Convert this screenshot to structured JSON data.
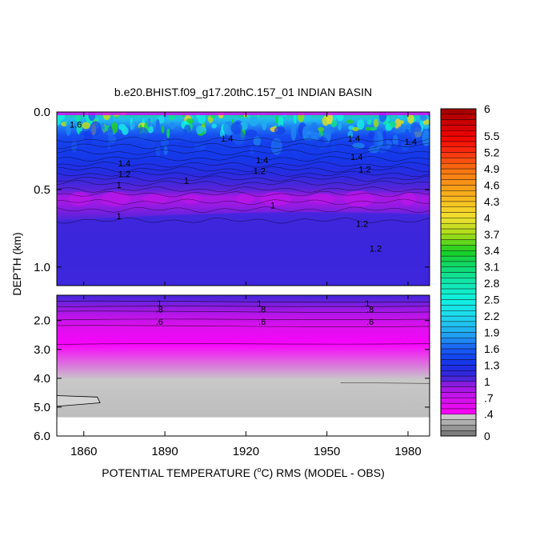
{
  "chart_data": {
    "type": "heatmap",
    "title": "b.e20.BHIST.f09_g17.20thC.157_01 INDIAN BASIN",
    "xlabel": "POTENTIAL TEMPERATURE (",
    "xlabel_deg": "o",
    "xlabel_rest": "C) RMS (MODEL - OBS)",
    "ylabel": "DEPTH (km)",
    "xlim": [
      1850,
      1988
    ],
    "x_ticks": [
      1860,
      1890,
      1920,
      1950,
      1980
    ],
    "x_tick_labels": [
      "1860",
      "1890",
      "1920",
      "1950",
      "1980"
    ],
    "upper_panel": {
      "ylim": [
        0.0,
        1.12
      ],
      "y_ticks": [
        0.0,
        0.5,
        1.0
      ],
      "y_tick_labels": [
        "0.0",
        "0.5",
        "1.0"
      ]
    },
    "lower_panel": {
      "ylim": [
        1.12,
        6.0
      ],
      "y_ticks": [
        2.0,
        3.0,
        4.0,
        5.0,
        6.0
      ],
      "y_tick_labels": [
        "2.0",
        "3.0",
        "4.0",
        "5.0",
        "6.0"
      ],
      "data_bottom_km": 5.35
    },
    "colorbar": {
      "min": 0,
      "max": 6,
      "labels": [
        "6",
        "5.5",
        "5.2",
        "4.9",
        "4.6",
        "4.3",
        "4",
        "3.7",
        "3.4",
        "3.1",
        "2.8",
        "2.5",
        "2.2",
        "1.9",
        "1.6",
        "1.3",
        "1",
        ".7",
        ".4",
        "0"
      ],
      "label_values": [
        6,
        5.5,
        5.2,
        4.9,
        4.6,
        4.3,
        4,
        3.7,
        3.4,
        3.1,
        2.8,
        2.5,
        2.2,
        1.9,
        1.6,
        1.3,
        1,
        0.7,
        0.4,
        0
      ]
    },
    "depth_profile_mean": [
      {
        "depth": 0.0,
        "value": 3.0
      },
      {
        "depth": 0.05,
        "value": 2.0
      },
      {
        "depth": 0.1,
        "value": 1.7
      },
      {
        "depth": 0.15,
        "value": 1.5
      },
      {
        "depth": 0.2,
        "value": 1.4
      },
      {
        "depth": 0.3,
        "value": 1.35
      },
      {
        "depth": 0.4,
        "value": 1.2
      },
      {
        "depth": 0.45,
        "value": 1.1
      },
      {
        "depth": 0.5,
        "value": 1.0
      },
      {
        "depth": 0.55,
        "value": 0.85
      },
      {
        "depth": 0.6,
        "value": 0.9
      },
      {
        "depth": 0.7,
        "value": 1.05
      },
      {
        "depth": 0.9,
        "value": 1.1
      },
      {
        "depth": 1.1,
        "value": 1.05
      },
      {
        "depth": 1.2,
        "value": 1.05
      },
      {
        "depth": 1.5,
        "value": 0.95
      },
      {
        "depth": 1.8,
        "value": 0.8
      },
      {
        "depth": 2.2,
        "value": 0.6
      },
      {
        "depth": 2.8,
        "value": 0.45
      },
      {
        "depth": 4.0,
        "value": 0.35
      },
      {
        "depth": 5.35,
        "value": 0.3
      }
    ],
    "contour_labels": [
      {
        "text": "1.6",
        "x": 1857,
        "depth": 0.08
      },
      {
        "text": "1.4",
        "x": 1913,
        "depth": 0.17
      },
      {
        "text": "1.4",
        "x": 1960,
        "depth": 0.17
      },
      {
        "text": "1.4",
        "x": 1981,
        "depth": 0.19
      },
      {
        "text": "1.4",
        "x": 1875,
        "depth": 0.33
      },
      {
        "text": "1.4",
        "x": 1926,
        "depth": 0.31
      },
      {
        "text": "1.4",
        "x": 1961,
        "depth": 0.29
      },
      {
        "text": "1.2",
        "x": 1875,
        "depth": 0.4
      },
      {
        "text": "1.2",
        "x": 1925,
        "depth": 0.38
      },
      {
        "text": "1.2",
        "x": 1964,
        "depth": 0.37
      },
      {
        "text": "1",
        "x": 1873,
        "depth": 0.47
      },
      {
        "text": "1",
        "x": 1898,
        "depth": 0.44
      },
      {
        "text": "1",
        "x": 1873,
        "depth": 0.67
      },
      {
        "text": "1",
        "x": 1930,
        "depth": 0.6
      },
      {
        "text": "1.2",
        "x": 1963,
        "depth": 0.72
      },
      {
        "text": "1.2",
        "x": 1968,
        "depth": 0.88
      },
      {
        "text": "1",
        "x": 1888,
        "depth": 1.4
      },
      {
        "text": "1",
        "x": 1925,
        "depth": 1.4
      },
      {
        "text": "1",
        "x": 1965,
        "depth": 1.4
      },
      {
        "text": ".8",
        "x": 1888,
        "depth": 1.6
      },
      {
        "text": ".8",
        "x": 1926,
        "depth": 1.6
      },
      {
        "text": ".8",
        "x": 1966,
        "depth": 1.6
      },
      {
        "text": ".6",
        "x": 1888,
        "depth": 2.03
      },
      {
        "text": ".6",
        "x": 1926,
        "depth": 2.03
      },
      {
        "text": ".6",
        "x": 1966,
        "depth": 2.03
      }
    ]
  },
  "colors": {
    "background": "#ffffff",
    "land_mask": "#d3d3d3"
  }
}
